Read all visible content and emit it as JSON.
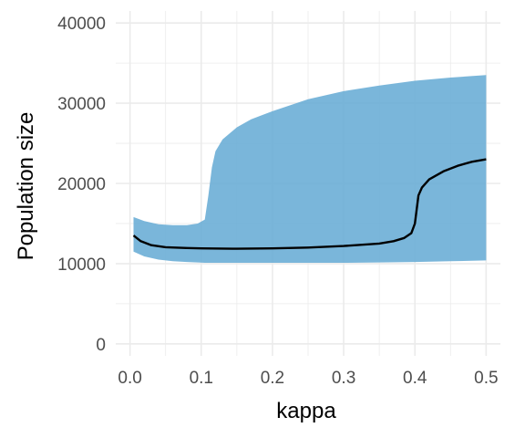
{
  "chart_data": {
    "type": "area",
    "title": "",
    "xlabel": "kappa",
    "ylabel": "Population size",
    "xlim": [
      -0.02,
      0.52
    ],
    "ylim": [
      -1500,
      41500
    ],
    "x_ticks": [
      0.0,
      0.1,
      0.2,
      0.3,
      0.4,
      0.5
    ],
    "x_tick_labels": [
      "0.0",
      "0.1",
      "0.2",
      "0.3",
      "0.4",
      "0.5"
    ],
    "y_ticks": [
      0,
      10000,
      20000,
      30000,
      40000
    ],
    "y_tick_labels": [
      "0",
      "10000",
      "20000",
      "30000",
      "40000"
    ],
    "grid": true,
    "legend": "none",
    "colors": {
      "ribbon": "#6baed6",
      "line": "#000000",
      "grid": "#ebebeb"
    },
    "series": [
      {
        "type": "ribbon",
        "x": [
          0.005,
          0.02,
          0.04,
          0.06,
          0.08,
          0.095,
          0.105,
          0.11,
          0.115,
          0.12,
          0.13,
          0.15,
          0.17,
          0.2,
          0.25,
          0.3,
          0.35,
          0.4,
          0.45,
          0.5
        ],
        "lower": [
          11500,
          10900,
          10500,
          10300,
          10200,
          10150,
          10100,
          10100,
          10100,
          10100,
          10100,
          10100,
          10100,
          10100,
          10100,
          10100,
          10150,
          10200,
          10300,
          10400
        ],
        "upper": [
          15800,
          15300,
          14900,
          14800,
          14800,
          15000,
          15500,
          18500,
          22000,
          24000,
          25500,
          27000,
          28000,
          29000,
          30500,
          31500,
          32200,
          32800,
          33200,
          33500
        ]
      },
      {
        "type": "line",
        "x": [
          0.005,
          0.015,
          0.03,
          0.05,
          0.08,
          0.1,
          0.15,
          0.2,
          0.25,
          0.3,
          0.35,
          0.37,
          0.385,
          0.395,
          0.4,
          0.405,
          0.41,
          0.42,
          0.44,
          0.46,
          0.48,
          0.5
        ],
        "y": [
          13500,
          12800,
          12300,
          12050,
          11950,
          11900,
          11850,
          11900,
          12000,
          12200,
          12500,
          12800,
          13200,
          13800,
          15000,
          18500,
          19500,
          20500,
          21500,
          22200,
          22700,
          23000
        ]
      }
    ]
  }
}
